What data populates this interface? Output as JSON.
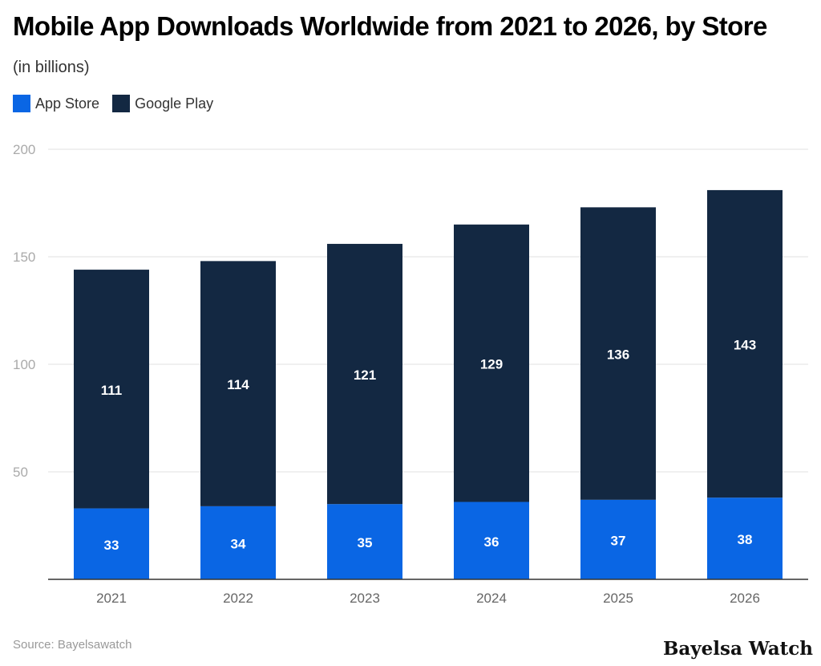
{
  "chart_data": {
    "type": "bar",
    "stacked": true,
    "title": "Mobile App Downloads Worldwide from 2021 to 2026, by Store",
    "subtitle": "(in billions)",
    "categories": [
      "2021",
      "2022",
      "2023",
      "2024",
      "2025",
      "2026"
    ],
    "series": [
      {
        "name": "App Store",
        "color": "#0a66e4",
        "values": [
          33,
          34,
          35,
          36,
          37,
          38
        ]
      },
      {
        "name": "Google Play",
        "color": "#132842",
        "values": [
          111,
          114,
          121,
          129,
          136,
          143
        ]
      }
    ],
    "ylim": [
      0,
      200
    ],
    "yticks": [
      50,
      100,
      150,
      200
    ],
    "grid": true,
    "legend": "top-left"
  },
  "source": "Source: Bayelsawatch",
  "logo_text": "Bayelsa Watch"
}
